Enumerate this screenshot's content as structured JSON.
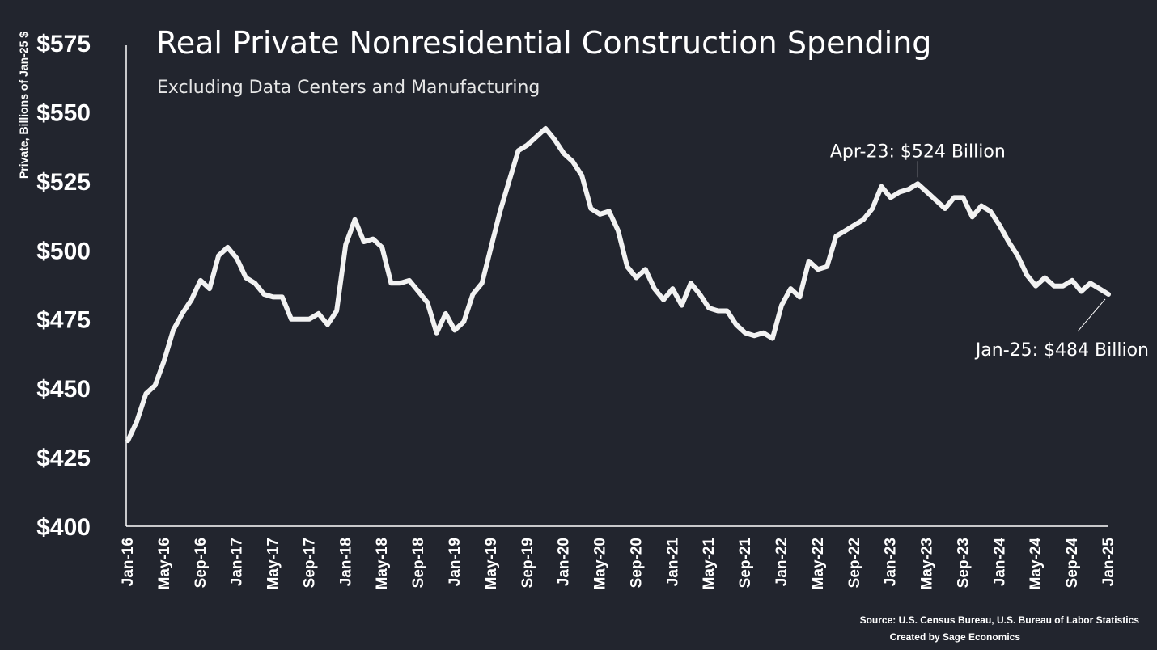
{
  "chart_data": {
    "type": "line",
    "title": "Real Private Nonresidential Construction Spending",
    "subtitle": "Excluding Data Centers and Manufacturing",
    "ylabel": "Private, Billions of Jan-25 $",
    "ylim": [
      400,
      575
    ],
    "yticks": [
      400,
      425,
      450,
      475,
      500,
      525,
      550,
      575
    ],
    "ytick_labels": [
      "$400",
      "$425",
      "$450",
      "$475",
      "$500",
      "$525",
      "$550",
      "$575"
    ],
    "xtick_labels": [
      "Jan-16",
      "May-16",
      "Sep-16",
      "Jan-17",
      "May-17",
      "Sep-17",
      "Jan-18",
      "May-18",
      "Sep-18",
      "Jan-19",
      "May-19",
      "Sep-19",
      "Jan-20",
      "May-20",
      "Sep-20",
      "Jan-21",
      "May-21",
      "Sep-21",
      "Jan-22",
      "May-22",
      "Sep-22",
      "Jan-23",
      "May-23",
      "Sep-23",
      "Jan-24",
      "May-24",
      "Sep-24",
      "Jan-25"
    ],
    "xtick_index": [
      0,
      4,
      8,
      12,
      16,
      20,
      24,
      28,
      32,
      36,
      40,
      44,
      48,
      52,
      56,
      60,
      64,
      68,
      72,
      76,
      80,
      84,
      88,
      92,
      96,
      100,
      104,
      108
    ],
    "grid": false,
    "series": [
      {
        "values": [
          431,
          438,
          448,
          451,
          460,
          471,
          477,
          482,
          489,
          486,
          498,
          501,
          497,
          490,
          488,
          484,
          483,
          483,
          475,
          475,
          475,
          477,
          473,
          478,
          502,
          511,
          503,
          504,
          501,
          488,
          488,
          489,
          485,
          481,
          470,
          477,
          471,
          474,
          484,
          488,
          501,
          514,
          525,
          536,
          538,
          541,
          544,
          540,
          535,
          532,
          527,
          515,
          513,
          514,
          507,
          494,
          490,
          493,
          486,
          482,
          486,
          480,
          488,
          484,
          479,
          478,
          478,
          473,
          470,
          469,
          470,
          468,
          480,
          486,
          483,
          496,
          493,
          494,
          505,
          507,
          509,
          511,
          515,
          523,
          519,
          521,
          522,
          524,
          521,
          518,
          515,
          519,
          519,
          512,
          516,
          514,
          509,
          503,
          498,
          491,
          487,
          490,
          487,
          487,
          489,
          485,
          488,
          486,
          484
        ]
      }
    ],
    "annotations": [
      {
        "label": "Apr-23: $524 Billion",
        "index": 87,
        "value": 524
      },
      {
        "label": "Jan-25: $484 Billion",
        "index": 108,
        "value": 484
      }
    ],
    "source_lines": [
      "Source: U.S. Census Bureau, U.S. Bureau of Labor Statistics",
      "Created by Sage Economics"
    ]
  }
}
